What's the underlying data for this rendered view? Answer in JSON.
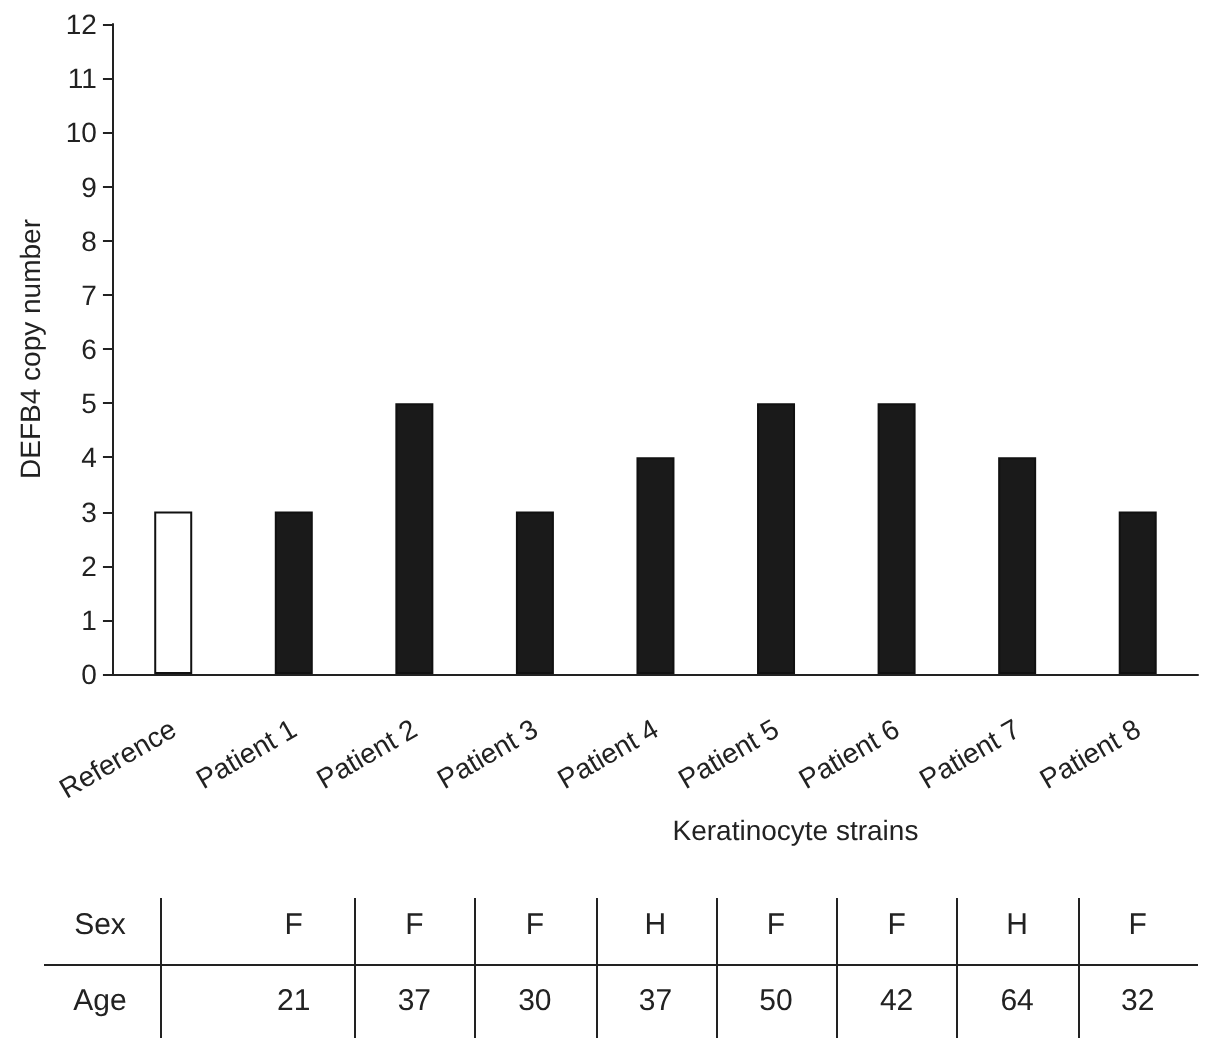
{
  "chart_data": {
    "type": "bar",
    "categories": [
      "Reference",
      "Patient 1",
      "Patient 2",
      "Patient 3",
      "Patient 4",
      "Patient 5",
      "Patient 6",
      "Patient 7",
      "Patient 8"
    ],
    "values": [
      3,
      3,
      5,
      3,
      4,
      5,
      5,
      4,
      3
    ],
    "colors": [
      "#ffffff",
      "#1a1a1a",
      "#1a1a1a",
      "#1a1a1a",
      "#1a1a1a",
      "#1a1a1a",
      "#1a1a1a",
      "#1a1a1a",
      "#1a1a1a"
    ],
    "xlabel": "Keratinocyte strains",
    "ylabel": "DEFB4 copy number",
    "ylim": [
      0,
      12
    ],
    "yticks": [
      0,
      1,
      2,
      3,
      4,
      5,
      6,
      7,
      8,
      9,
      10,
      11,
      12
    ],
    "annotations": [
      "Sex",
      "F",
      "F",
      "F",
      "H",
      "F",
      "F",
      "H",
      "F",
      "Age",
      "21",
      "37",
      "30",
      "37",
      "50",
      "42",
      "64",
      "32"
    ],
    "grid": false
  }
}
